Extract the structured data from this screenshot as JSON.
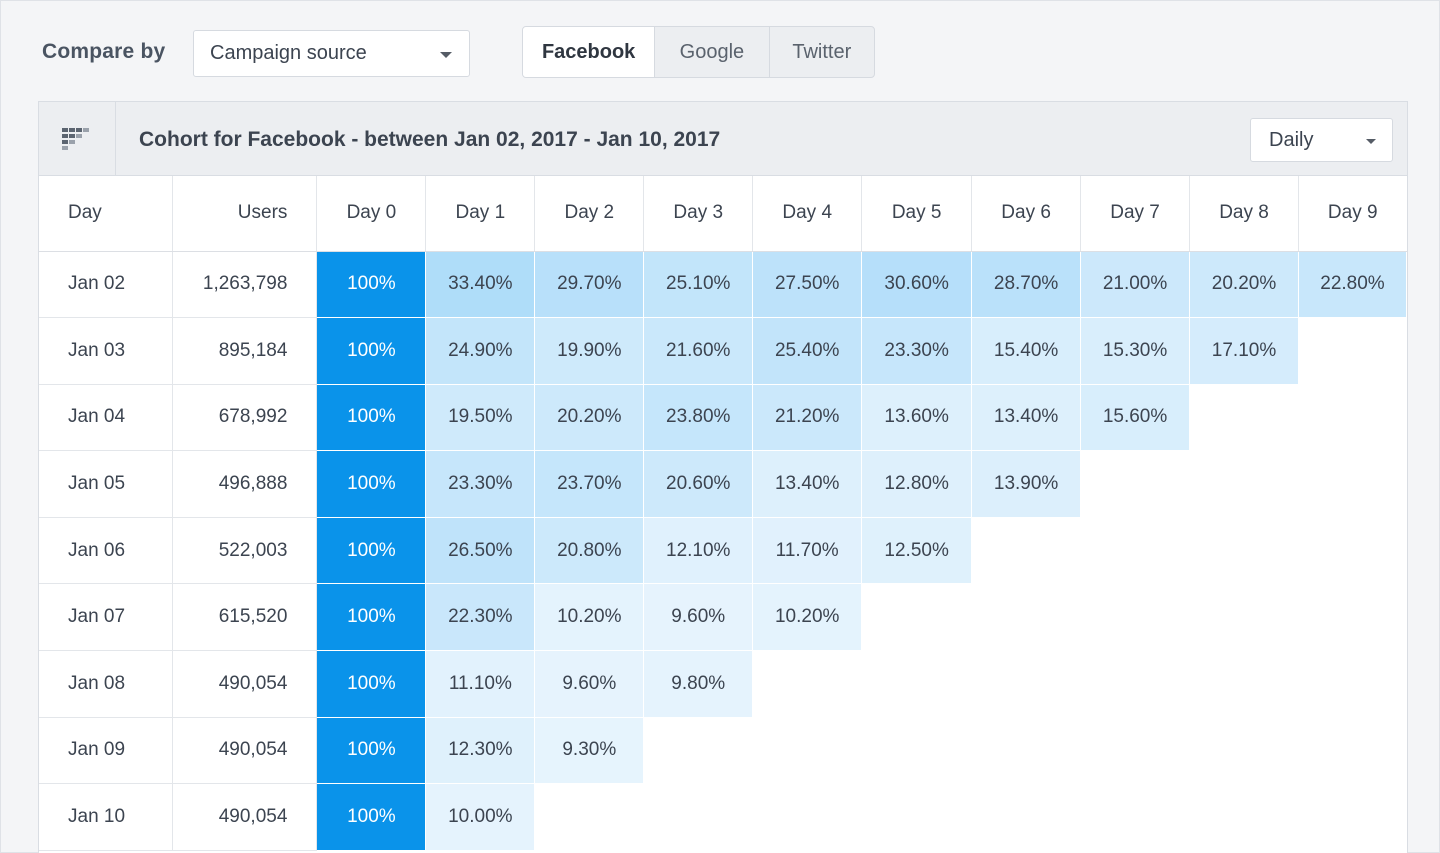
{
  "toolbar": {
    "compare_label": "Compare by",
    "compare_select": "Campaign source",
    "sources": [
      {
        "label": "Facebook",
        "active": true
      },
      {
        "label": "Google",
        "active": false
      },
      {
        "label": "Twitter",
        "active": false
      }
    ]
  },
  "panel": {
    "icon": "cohort-grid-icon",
    "title": "Cohort for Facebook - between Jan 02, 2017 - Jan 10, 2017",
    "period": "Daily"
  },
  "table": {
    "headers": [
      "Day",
      "Users",
      "Day 0",
      "Day 1",
      "Day 2",
      "Day 3",
      "Day 4",
      "Day 5",
      "Day 6",
      "Day 7",
      "Day 8",
      "Day 9"
    ],
    "rows": [
      {
        "day": "Jan 02",
        "users": "1,263,798",
        "values": [
          "100%",
          "33.40%",
          "29.70%",
          "25.10%",
          "27.50%",
          "30.60%",
          "28.70%",
          "21.00%",
          "20.20%",
          "22.80%"
        ]
      },
      {
        "day": "Jan 03",
        "users": "895,184",
        "values": [
          "100%",
          "24.90%",
          "19.90%",
          "21.60%",
          "25.40%",
          "23.30%",
          "15.40%",
          "15.30%",
          "17.10%"
        ]
      },
      {
        "day": "Jan 04",
        "users": "678,992",
        "values": [
          "100%",
          "19.50%",
          "20.20%",
          "23.80%",
          "21.20%",
          "13.60%",
          "13.40%",
          "15.60%"
        ]
      },
      {
        "day": "Jan 05",
        "users": "496,888",
        "values": [
          "100%",
          "23.30%",
          "23.70%",
          "20.60%",
          "13.40%",
          "12.80%",
          "13.90%"
        ]
      },
      {
        "day": "Jan 06",
        "users": "522,003",
        "values": [
          "100%",
          "26.50%",
          "20.80%",
          "12.10%",
          "11.70%",
          "12.50%"
        ]
      },
      {
        "day": "Jan 07",
        "users": "615,520",
        "values": [
          "100%",
          "22.30%",
          "10.20%",
          "9.60%",
          "10.20%"
        ]
      },
      {
        "day": "Jan 08",
        "users": "490,054",
        "values": [
          "100%",
          "11.10%",
          "9.60%",
          "9.80%"
        ]
      },
      {
        "day": "Jan 09",
        "users": "490,054",
        "values": [
          "100%",
          "12.30%",
          "9.30%"
        ]
      },
      {
        "day": "Jan 10",
        "users": "490,054",
        "values": [
          "100%",
          "10.00%"
        ]
      }
    ]
  },
  "colors": {
    "day0": "#0a93ea",
    "scale_low": "#e7f4fd",
    "scale_high": "#aedcf9"
  }
}
